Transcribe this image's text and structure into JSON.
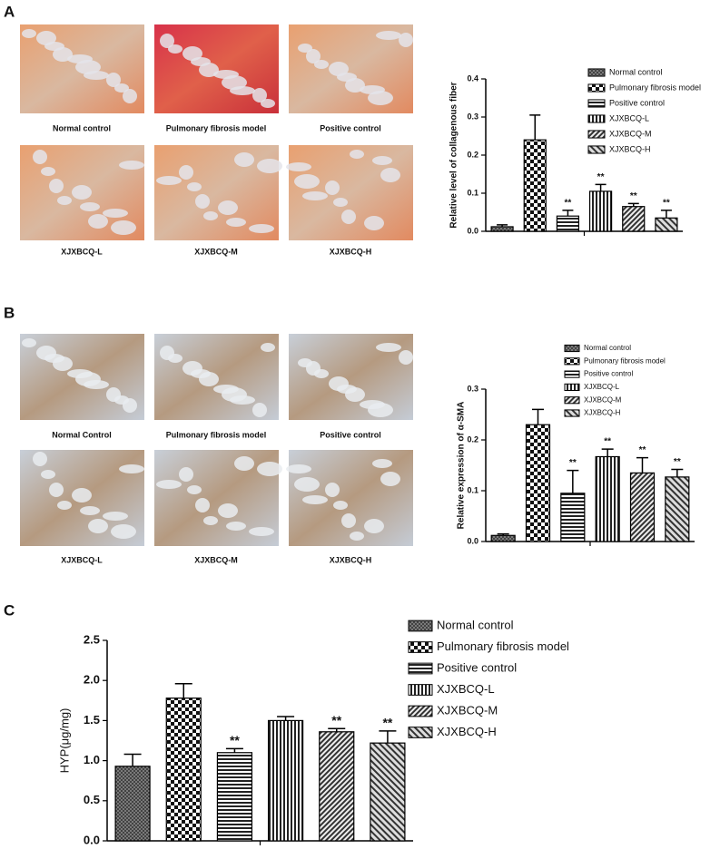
{
  "panels": {
    "labels": [
      "A",
      "B",
      "C"
    ],
    "A": {
      "captions": [
        "Normal control",
        "Pulmonary fibrosis model",
        "Positive control",
        "XJXBCQ-L",
        "XJXBCQ-M",
        "XJXBCQ-H"
      ]
    },
    "B": {
      "captions": [
        "Normal Control",
        "Pulmonary fibrosis model",
        "Positive control",
        "XJXBCQ-L",
        "XJXBCQ-M",
        "XJXBCQ-H"
      ]
    }
  },
  "chart_data": [
    {
      "type": "bar",
      "ylabel": "Relative level of collagenous fiber",
      "categories": [
        "Normal control",
        "Pulmonary fibrosis model",
        "Positive control",
        "XJXBCQ-L",
        "XJXBCQ-M",
        "XJXBCQ-H"
      ],
      "values": [
        0.012,
        0.24,
        0.04,
        0.105,
        0.065,
        0.035
      ],
      "errors": [
        0.005,
        0.065,
        0.015,
        0.018,
        0.008,
        0.02
      ],
      "annotations": [
        null,
        null,
        "**",
        "**",
        "**",
        "**"
      ],
      "ylim": [
        0,
        0.4
      ],
      "yticks": [
        {
          "value": 0,
          "label": "0.0"
        },
        0.1,
        0.2,
        0.3,
        0.4
      ]
    },
    {
      "type": "bar",
      "ylabel": "Relative expression of α-SMA",
      "categories": [
        "Normal control",
        "Pulmonary fibrosis model",
        "Positive control",
        "XJXBCQ-L",
        "XJXBCQ-M",
        "XJXBCQ-H"
      ],
      "values": [
        0.012,
        0.23,
        0.095,
        0.167,
        0.135,
        0.127
      ],
      "errors": [
        0.003,
        0.03,
        0.045,
        0.015,
        0.03,
        0.015
      ],
      "annotations": [
        null,
        null,
        "**",
        "**",
        "**",
        "**"
      ],
      "ylim": [
        0,
        0.3
      ],
      "yticks": [
        {
          "value": 0,
          "label": "0.0"
        },
        0.1,
        0.2,
        0.3
      ]
    },
    {
      "type": "bar",
      "ylabel": "HYP(μg/mg)",
      "categories": [
        "Normal control",
        "Pulmonary fibrosis model",
        "Positive control",
        "XJXBCQ-L",
        "XJXBCQ-M",
        "XJXBCQ-H"
      ],
      "values": [
        0.93,
        1.78,
        1.1,
        1.5,
        1.36,
        1.22
      ],
      "errors": [
        0.15,
        0.18,
        0.05,
        0.05,
        0.04,
        0.15
      ],
      "annotations": [
        null,
        null,
        "**",
        null,
        "**",
        "**"
      ],
      "ylim": [
        0,
        2.5
      ],
      "yticks": [
        {
          "value": 0,
          "label": "0.0"
        },
        0.5,
        {
          "value": 1,
          "label": "1.0"
        },
        1.5,
        {
          "value": 2,
          "label": "2.0"
        },
        2.5
      ]
    }
  ]
}
